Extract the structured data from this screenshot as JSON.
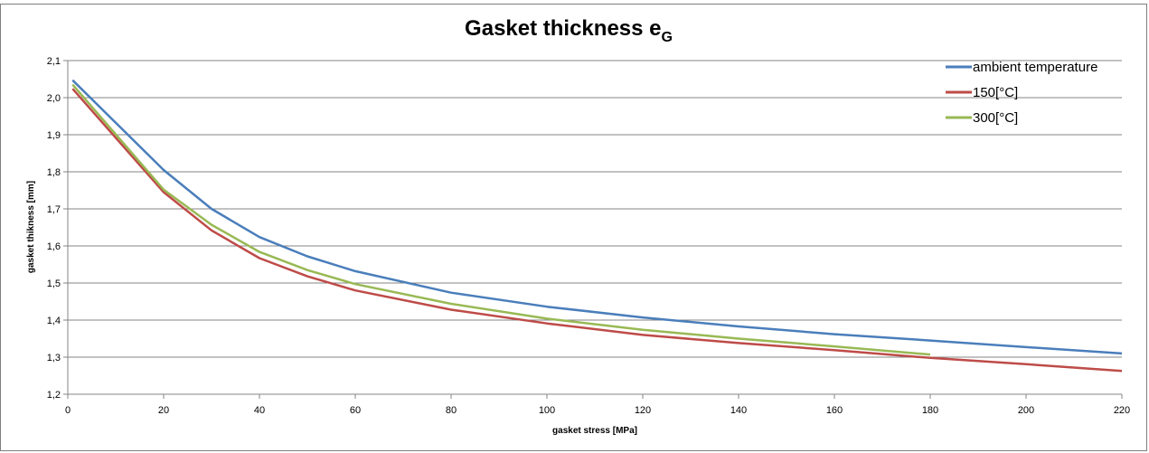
{
  "chart_data": {
    "type": "line",
    "title": "Gasket thickness e",
    "title_subscript": "G",
    "xlabel": "gasket stress [MPa]",
    "ylabel": "gasket thikness [mm]",
    "xlim": [
      0,
      220
    ],
    "ylim": [
      1.2,
      2.1
    ],
    "x_ticks": [
      "0",
      "20",
      "40",
      "60",
      "80",
      "100",
      "120",
      "140",
      "160",
      "180",
      "200",
      "220"
    ],
    "y_ticks": [
      "1,2",
      "1,3",
      "1,4",
      "1,5",
      "1,6",
      "1,7",
      "1,8",
      "1,9",
      "2,0",
      "2,1"
    ],
    "grid": "horizontal",
    "legend_position": "top-right",
    "series": [
      {
        "name": "ambient temperature",
        "color": "#4a7ebb",
        "points": [
          [
            1,
            2.047
          ],
          [
            20,
            1.805
          ],
          [
            30,
            1.7
          ],
          [
            40,
            1.624
          ],
          [
            50,
            1.572
          ],
          [
            60,
            1.532
          ],
          [
            80,
            1.474
          ],
          [
            100,
            1.436
          ],
          [
            120,
            1.407
          ],
          [
            140,
            1.383
          ],
          [
            160,
            1.362
          ],
          [
            180,
            1.345
          ],
          [
            200,
            1.327
          ],
          [
            220,
            1.31
          ]
        ]
      },
      {
        "name": "150[°C]",
        "color": "#be4b48",
        "points": [
          [
            1,
            2.024
          ],
          [
            20,
            1.745
          ],
          [
            30,
            1.642
          ],
          [
            40,
            1.567
          ],
          [
            50,
            1.518
          ],
          [
            60,
            1.48
          ],
          [
            80,
            1.428
          ],
          [
            100,
            1.391
          ],
          [
            120,
            1.36
          ],
          [
            140,
            1.338
          ],
          [
            160,
            1.319
          ],
          [
            180,
            1.298
          ],
          [
            200,
            1.281
          ],
          [
            220,
            1.263
          ]
        ]
      },
      {
        "name": "300[°C]",
        "color": "#98b954",
        "points": [
          [
            1,
            2.035
          ],
          [
            20,
            1.752
          ],
          [
            30,
            1.657
          ],
          [
            40,
            1.584
          ],
          [
            50,
            1.535
          ],
          [
            60,
            1.497
          ],
          [
            80,
            1.444
          ],
          [
            100,
            1.404
          ],
          [
            120,
            1.374
          ],
          [
            140,
            1.35
          ],
          [
            160,
            1.329
          ],
          [
            180,
            1.307
          ]
        ]
      }
    ]
  }
}
